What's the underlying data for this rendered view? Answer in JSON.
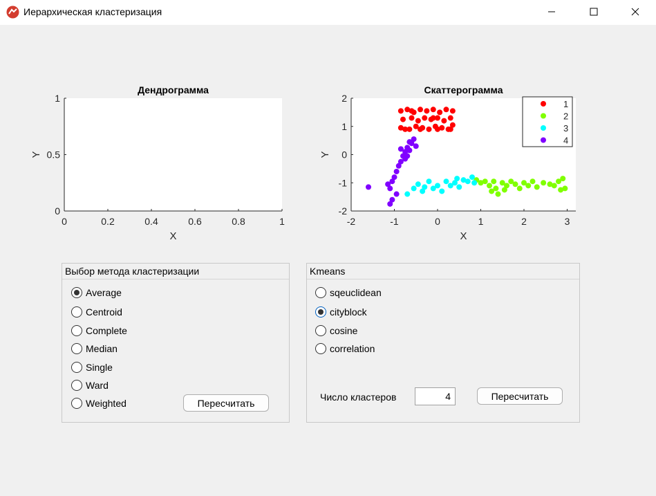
{
  "window": {
    "title": "Иерархическая кластеризация"
  },
  "dendrogram": {
    "title": "Дендрограмма",
    "xlabel": "X",
    "ylabel": "Y",
    "xticks": [
      "0",
      "0.2",
      "0.4",
      "0.6",
      "0.8",
      "1"
    ],
    "yticks": [
      "0",
      "0.5",
      "1"
    ]
  },
  "scatter": {
    "title": "Скаттерограмма",
    "xlabel": "X",
    "ylabel": "Y",
    "xticks": [
      "-2",
      "-1",
      "0",
      "1",
      "2",
      "3"
    ],
    "yticks": [
      "-2",
      "-1",
      "0",
      "1",
      "2"
    ],
    "legend": [
      "1",
      "2",
      "3",
      "4"
    ]
  },
  "colors": {
    "c1": "#ff0000",
    "c2": "#80ff00",
    "c3": "#00ffff",
    "c4": "#8000ff"
  },
  "chart_data": [
    {
      "type": "scatter",
      "title": "Дендрограмма",
      "xlabel": "X",
      "ylabel": "Y",
      "xlim": [
        0,
        1
      ],
      "ylim": [
        0,
        1
      ],
      "series": []
    },
    {
      "type": "scatter",
      "title": "Скаттерограмма",
      "xlabel": "X",
      "ylabel": "Y",
      "xlim": [
        -2,
        3.2
      ],
      "ylim": [
        -2,
        2
      ],
      "legend_position": "top-right",
      "series": [
        {
          "name": "1",
          "color": "#ff0000",
          "points": [
            [
              -0.85,
              1.55
            ],
            [
              -0.7,
              1.6
            ],
            [
              -0.55,
              1.5
            ],
            [
              -0.4,
              1.6
            ],
            [
              -0.25,
              1.55
            ],
            [
              -0.1,
              1.6
            ],
            [
              0.05,
              1.5
            ],
            [
              0.2,
              1.6
            ],
            [
              0.35,
              1.55
            ],
            [
              -0.8,
              1.25
            ],
            [
              -0.6,
              1.3
            ],
            [
              -0.45,
              1.2
            ],
            [
              -0.3,
              1.3
            ],
            [
              -0.15,
              1.25
            ],
            [
              0.0,
              1.3
            ],
            [
              0.15,
              1.2
            ],
            [
              0.3,
              1.3
            ],
            [
              -0.85,
              0.95
            ],
            [
              -0.65,
              0.9
            ],
            [
              -0.5,
              1.0
            ],
            [
              -0.35,
              0.95
            ],
            [
              -0.2,
              0.9
            ],
            [
              -0.05,
              1.0
            ],
            [
              0.1,
              0.95
            ],
            [
              0.25,
              0.9
            ],
            [
              0.35,
              1.05
            ],
            [
              -0.75,
              0.9
            ],
            [
              -0.4,
              0.9
            ],
            [
              0.0,
              0.9
            ],
            [
              0.3,
              0.9
            ],
            [
              -0.6,
              1.55
            ],
            [
              -0.1,
              1.3
            ]
          ]
        },
        {
          "name": "2",
          "color": "#80ff00",
          "points": [
            [
              0.9,
              -0.9
            ],
            [
              1.0,
              -1.0
            ],
            [
              1.1,
              -0.95
            ],
            [
              1.2,
              -1.1
            ],
            [
              1.3,
              -0.95
            ],
            [
              1.35,
              -1.2
            ],
            [
              1.4,
              -1.4
            ],
            [
              1.5,
              -1.0
            ],
            [
              1.6,
              -1.1
            ],
            [
              1.7,
              -0.95
            ],
            [
              1.8,
              -1.05
            ],
            [
              1.9,
              -1.2
            ],
            [
              2.0,
              -1.0
            ],
            [
              2.1,
              -1.1
            ],
            [
              2.2,
              -0.95
            ],
            [
              2.3,
              -1.15
            ],
            [
              2.45,
              -1.0
            ],
            [
              2.6,
              -1.05
            ],
            [
              2.7,
              -1.1
            ],
            [
              2.8,
              -0.95
            ],
            [
              2.85,
              -1.25
            ],
            [
              2.95,
              -1.2
            ],
            [
              2.9,
              -0.85
            ],
            [
              1.25,
              -1.3
            ],
            [
              1.55,
              -1.25
            ]
          ]
        },
        {
          "name": "3",
          "color": "#00ffff",
          "points": [
            [
              -0.7,
              -1.4
            ],
            [
              -0.55,
              -1.2
            ],
            [
              -0.45,
              -1.05
            ],
            [
              -0.3,
              -1.15
            ],
            [
              -0.2,
              -0.95
            ],
            [
              -0.1,
              -1.2
            ],
            [
              0.0,
              -1.1
            ],
            [
              0.1,
              -1.3
            ],
            [
              0.2,
              -0.95
            ],
            [
              0.3,
              -1.1
            ],
            [
              0.4,
              -1.0
            ],
            [
              0.5,
              -1.15
            ],
            [
              0.6,
              -0.9
            ],
            [
              0.7,
              -0.95
            ],
            [
              0.8,
              -0.8
            ],
            [
              0.85,
              -1.0
            ],
            [
              0.45,
              -0.85
            ],
            [
              -0.35,
              -1.3
            ]
          ]
        },
        {
          "name": "4",
          "color": "#8000ff",
          "points": [
            [
              -1.6,
              -1.15
            ],
            [
              -1.05,
              -1.6
            ],
            [
              -1.1,
              -1.2
            ],
            [
              -1.05,
              -0.95
            ],
            [
              -1.0,
              -0.8
            ],
            [
              -0.95,
              -0.6
            ],
            [
              -0.9,
              -0.4
            ],
            [
              -0.85,
              -0.25
            ],
            [
              -0.8,
              -0.05
            ],
            [
              -0.75,
              0.1
            ],
            [
              -0.7,
              0.25
            ],
            [
              -0.65,
              0.15
            ],
            [
              -0.6,
              0.4
            ],
            [
              -0.55,
              0.55
            ],
            [
              -0.5,
              0.3
            ],
            [
              -0.85,
              0.2
            ],
            [
              -0.75,
              -0.15
            ],
            [
              -0.95,
              -1.4
            ],
            [
              -1.15,
              -1.05
            ],
            [
              -0.65,
              0.45
            ],
            [
              -0.7,
              -0.05
            ],
            [
              -1.1,
              -1.75
            ]
          ]
        }
      ]
    }
  ],
  "methods_panel": {
    "title": "Выбор метода кластеризации",
    "options": [
      "Average",
      "Centroid",
      "Complete",
      "Median",
      "Single",
      "Ward",
      "Weighted"
    ],
    "selected": "Average",
    "recalc_label": "Пересчитать"
  },
  "kmeans_panel": {
    "title": "Kmeans",
    "options": [
      "sqeuclidean",
      "cityblock",
      "cosine",
      "correlation"
    ],
    "selected": "cityblock",
    "clusters_label": "Число кластеров",
    "clusters_value": "4",
    "recalc_label": "Пересчитать"
  }
}
